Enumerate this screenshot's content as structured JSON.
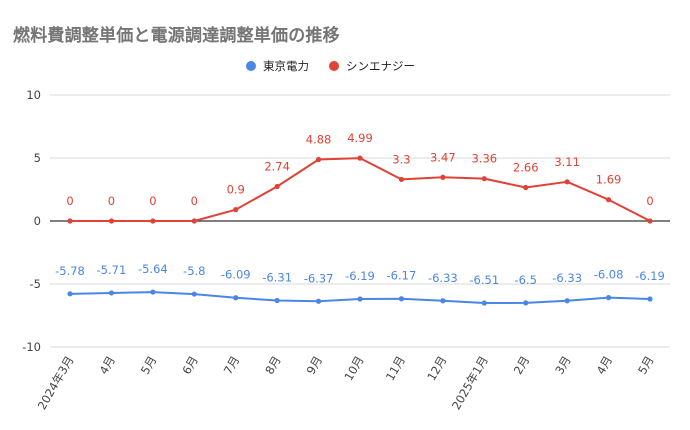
{
  "chart_data": {
    "type": "line",
    "title": "燃料費調整単価と電源調達調整単価の推移",
    "categories": [
      "2024年3月",
      "4月",
      "5月",
      "6月",
      "7月",
      "8月",
      "9月",
      "10月",
      "11月",
      "12月",
      "2025年1月",
      "2月",
      "3月",
      "4月",
      "5月"
    ],
    "series": [
      {
        "name": "東京電力",
        "color": "#4a86e8",
        "values": [
          -5.78,
          -5.71,
          -5.64,
          -5.8,
          -6.09,
          -6.31,
          -6.37,
          -6.19,
          -6.17,
          -6.33,
          -6.51,
          -6.5,
          -6.33,
          -6.08,
          -6.19
        ]
      },
      {
        "name": "シンエナジー",
        "color": "#e04235",
        "values": [
          0,
          0,
          0,
          0,
          0.9,
          2.74,
          4.88,
          4.99,
          3.3,
          3.47,
          3.36,
          2.66,
          3.11,
          1.69,
          0
        ]
      }
    ],
    "ylim": [
      -10,
      10
    ],
    "yticks": [
      -10,
      -5,
      0,
      5,
      10
    ],
    "grid": true,
    "legend": "top-center",
    "data_labels": true
  }
}
